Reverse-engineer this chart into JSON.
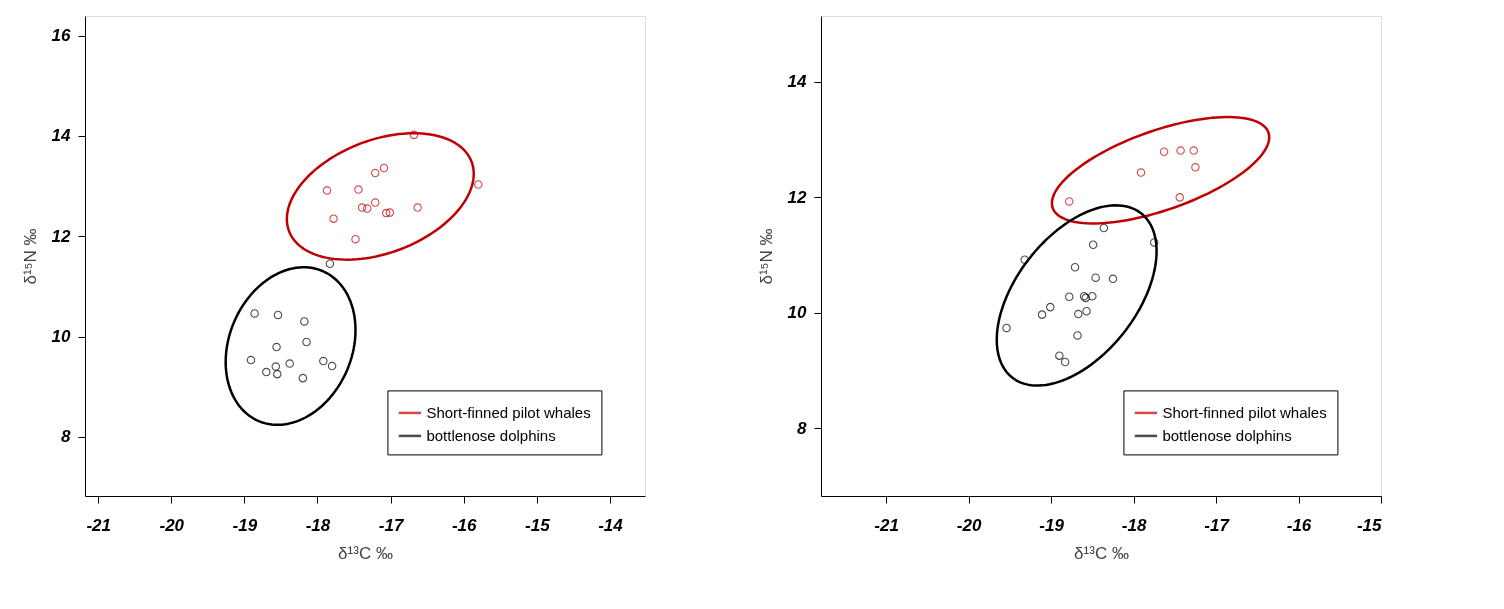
{
  "chart_data": [
    {
      "type": "scatter",
      "xlabel": "δ¹³C ‰",
      "ylabel": "δ¹⁵N ‰",
      "xlim": [
        -21.18,
        -13.52
      ],
      "ylim": [
        6.82,
        16.39
      ],
      "xticks": [
        -21,
        -20,
        -19,
        -18,
        -17,
        -16,
        -15,
        -14
      ],
      "yticks": [
        8,
        10,
        12,
        14,
        16
      ],
      "legend": "bottom right",
      "marker": "circle",
      "series": [
        {
          "name": "Short-finned pilot whales",
          "color": "#c00000",
          "x": [
            -16.68,
            -15.8,
            -17.09,
            -17.21,
            -17.44,
            -17.87,
            -17.21,
            -17.39,
            -17.32,
            -17.06,
            -17.01,
            -16.63,
            -17.78,
            -17.48
          ],
          "values": [
            14.02,
            13.03,
            13.36,
            13.26,
            12.93,
            12.91,
            12.67,
            12.57,
            12.55,
            12.46,
            12.47,
            12.57,
            12.35,
            11.94
          ]
        },
        {
          "name": "bottlenose dolphins",
          "color": "#000000",
          "x": [
            -17.83,
            -18.86,
            -18.54,
            -18.18,
            -18.15,
            -18.56,
            -18.91,
            -17.92,
            -17.8,
            -18.38,
            -18.57,
            -18.7,
            -18.55,
            -18.2
          ],
          "values": [
            11.45,
            10.46,
            10.43,
            10.3,
            9.89,
            9.79,
            9.53,
            9.51,
            9.41,
            9.46,
            9.4,
            9.29,
            9.25,
            9.17
          ]
        }
      ]
    },
    {
      "type": "scatter",
      "xlabel": "δ¹³C ‰",
      "ylabel": "δ¹⁵N ‰",
      "xlim": [
        -21.79,
        -15
      ],
      "ylim": [
        6.83,
        15.14
      ],
      "xticks": [
        -21,
        -20,
        -19,
        -18,
        -17,
        -16,
        -15
      ],
      "yticks": [
        8,
        10,
        12,
        14
      ],
      "legend": "bottom right",
      "marker": "circle",
      "series": [
        {
          "name": "Short-finned pilot whales",
          "color": "#c00000",
          "x": [
            -17.63,
            -17.43,
            -17.27,
            -17.25,
            -17.91,
            -17.44,
            -18.78
          ],
          "values": [
            12.79,
            12.81,
            12.81,
            12.52,
            12.43,
            12.0,
            11.93
          ]
        },
        {
          "name": "bottlenose dolphins",
          "color": "#000000",
          "x": [
            -18.36,
            -17.75,
            -18.49,
            -19.32,
            -18.71,
            -18.46,
            -18.25,
            -18.78,
            -18.6,
            -18.5,
            -18.58,
            -19.01,
            -19.11,
            -18.67,
            -18.57,
            -19.54,
            -18.68,
            -18.9,
            -18.83
          ],
          "values": [
            11.47,
            11.22,
            11.18,
            10.92,
            10.79,
            10.61,
            10.59,
            10.28,
            10.29,
            10.29,
            10.26,
            10.1,
            9.97,
            9.98,
            10.03,
            9.74,
            9.61,
            9.26,
            9.15
          ]
        }
      ]
    }
  ]
}
